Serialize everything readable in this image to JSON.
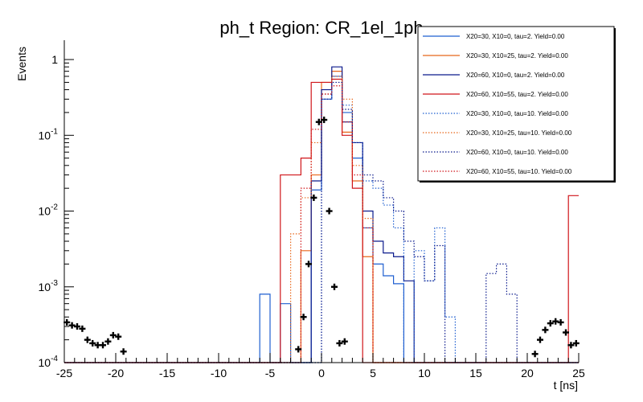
{
  "chart_data": {
    "type": "histogram",
    "title": "ph_t Region: CR_1el_1ph",
    "xlabel": "t [ns]",
    "ylabel": "Events",
    "xlim": [
      -25,
      25
    ],
    "ylim": [
      0.0001,
      1.8
    ],
    "yscale": "log",
    "bin_width": 1,
    "bin_edges_start": -25,
    "x_ticks": [
      -25,
      -20,
      -15,
      -10,
      -5,
      0,
      5,
      10,
      15,
      20,
      25
    ],
    "y_ticks": [
      {
        "value": 0.0001,
        "base": "10",
        "exp": "-4"
      },
      {
        "value": 0.001,
        "base": "10",
        "exp": "-3"
      },
      {
        "value": 0.01,
        "base": "10",
        "exp": "-2"
      },
      {
        "value": 0.1,
        "base": "10",
        "exp": "-1"
      },
      {
        "value": 1,
        "label": "1"
      }
    ],
    "legend_position": "top-right",
    "series": [
      {
        "name": "X20=30, X10=0, tau=2. Yield=0.00",
        "color": "#1f5fd0",
        "style": "solid",
        "bins": {
          "-6": 0.0008,
          "-4": 0.0006,
          "-1": 0.019,
          "0": 0.3,
          "1": 0.6,
          "2": 0.2,
          "3": 0.05,
          "4": 0.006,
          "5": 0.002,
          "6": 0.0014,
          "7": 0.0011
        }
      },
      {
        "name": "X20=30, X10=25, tau=2. Yield=0.00",
        "color": "#e8671b",
        "style": "solid",
        "bins": {
          "-2": 0.003,
          "-1": 0.03,
          "0": 0.5,
          "1": 0.7,
          "2": 0.11,
          "3": 0.025,
          "4": 0.0025
        }
      },
      {
        "name": "X20=60, X10=0, tau=2. Yield=0.00",
        "color": "#0b1a8c",
        "style": "solid",
        "bins": {
          "-1": 0.025,
          "0": 0.4,
          "1": 0.8,
          "2": 0.15,
          "3": 0.08,
          "4": 0.01,
          "5": 0.004,
          "6": 0.0028,
          "7": 0.0025,
          "8": 0.0012
        }
      },
      {
        "name": "X20=60, X10=55, tau=2. Yield=0.00",
        "color": "#d0161a",
        "style": "solid",
        "bins": {
          "-4": 0.03,
          "-3": 0.03,
          "-2": 0.05,
          "-1": 0.5,
          "0": 0.5,
          "1": 0.55,
          "2": 0.1,
          "3": 0.02,
          "24": 0.016
        }
      },
      {
        "name": "X20=30, X10=0, tau=10. Yield=0.00",
        "color": "#1f5fd0",
        "style": "dotted",
        "bins": {
          "0": 0.35,
          "1": 0.6,
          "2": 0.25,
          "3": 0.08,
          "4": 0.025,
          "5": 0.02,
          "6": 0.012,
          "7": 0.006,
          "9": 0.003,
          "10": 0.0012,
          "11": 0.006,
          "12": 0.0004
        }
      },
      {
        "name": "X20=30, X10=25, tau=10. Yield=0.00",
        "color": "#e8671b",
        "style": "dotted",
        "bins": {
          "-3": 0.005,
          "-2": 0.015,
          "-1": 0.08,
          "0": 0.35,
          "1": 0.6,
          "2": 0.3,
          "3": 0.04,
          "4": 0.008
        }
      },
      {
        "name": "X20=60, X10=0, tau=10. Yield=0.00",
        "color": "#0b1a8c",
        "style": "dotted",
        "bins": {
          "0": 0.3,
          "1": 0.5,
          "2": 0.22,
          "3": 0.08,
          "4": 0.03,
          "5": 0.025,
          "6": 0.015,
          "7": 0.01,
          "8": 0.004,
          "9": 0.0025,
          "10": 0.0012,
          "11": 0.0035,
          "16": 0.0015,
          "17": 0.002,
          "18": 0.0008
        }
      },
      {
        "name": "X20=60, X10=55, tau=10. Yield=0.00",
        "color": "#d0161a",
        "style": "dotted",
        "bins": {
          "-2": 0.02,
          "-1": 0.12,
          "0": 0.35,
          "1": 0.45,
          "2": 0.15,
          "3": 0.03,
          "4": 0.006
        }
      }
    ],
    "data_points": {
      "name": "Data",
      "color": "#000000",
      "x": [
        -24.75,
        -24.25,
        -23.75,
        -23.25,
        -22.75,
        -22.25,
        -21.75,
        -21.25,
        -20.75,
        -20.25,
        -19.75,
        -19.25,
        -2.25,
        -1.75,
        -1.25,
        -0.75,
        -0.25,
        0.25,
        0.75,
        1.25,
        1.75,
        2.25,
        20.75,
        21.25,
        21.75,
        22.25,
        22.75,
        23.25,
        23.75,
        24.25,
        24.75
      ],
      "y": [
        0.00034,
        0.00031,
        0.0003,
        0.00028,
        0.0002,
        0.00018,
        0.00017,
        0.00017,
        0.00019,
        0.00023,
        0.00022,
        0.00014,
        0.00015,
        0.0004,
        0.002,
        0.015,
        0.15,
        0.16,
        0.01,
        0.001,
        0.00018,
        0.00019,
        0.00013,
        0.0002,
        0.00027,
        0.00033,
        0.00035,
        0.00034,
        0.00025,
        0.00017,
        0.00018
      ]
    }
  }
}
